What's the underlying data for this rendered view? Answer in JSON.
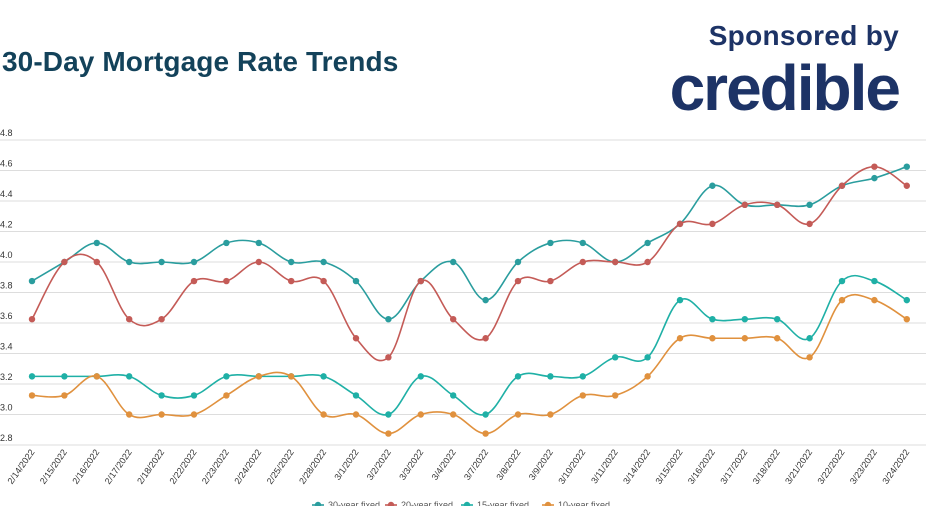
{
  "header": {
    "title": "30-Day Mortgage Rate Trends",
    "sponsor_label": "Sponsored by",
    "sponsor_logo": "credible"
  },
  "colors": {
    "title": "#13425a",
    "sponsor": "#1d3366",
    "grid": "#dddddd"
  },
  "chart_data": {
    "type": "line",
    "title": "30-Day Mortgage Rate Trends",
    "xlabel": "",
    "ylabel": "",
    "ylim": [
      2.8,
      4.8
    ],
    "yticks": [
      "2.8",
      "3.0",
      "3.2",
      "3.4",
      "3.6",
      "3.8",
      "4.0",
      "4.2",
      "4.4",
      "4.6",
      "4.8"
    ],
    "grid": true,
    "legend_position": "bottom",
    "categories": [
      "2/14/2022",
      "2/15/2022",
      "2/16/2022",
      "2/17/2022",
      "2/18/2022",
      "2/22/2022",
      "2/23/2022",
      "2/24/2022",
      "2/25/2022",
      "2/28/2022",
      "3/1/2022",
      "3/2/2022",
      "3/3/2022",
      "3/4/2022",
      "3/7/2022",
      "3/8/2022",
      "3/9/2022",
      "3/10/2022",
      "3/11/2022",
      "3/14/2022",
      "3/15/2022",
      "3/16/2022",
      "3/17/2022",
      "3/18/2022",
      "3/21/2022",
      "3/22/2022",
      "3/23/2022",
      "3/24/2022"
    ],
    "series": [
      {
        "name": "30-year fixed",
        "color": "#2a9d9e",
        "values": [
          3.875,
          4.0,
          4.125,
          4.0,
          4.0,
          4.0,
          4.125,
          4.125,
          4.0,
          4.0,
          3.875,
          3.625,
          3.875,
          4.0,
          3.75,
          4.0,
          4.125,
          4.125,
          4.0,
          4.125,
          4.25,
          4.5,
          4.375,
          4.375,
          4.375,
          4.5,
          4.55,
          4.625
        ]
      },
      {
        "name": "20-year fixed",
        "color": "#c45b57",
        "values": [
          3.625,
          4.0,
          4.0,
          3.625,
          3.625,
          3.875,
          3.875,
          4.0,
          3.875,
          3.875,
          3.5,
          3.375,
          3.875,
          3.625,
          3.5,
          3.875,
          3.875,
          4.0,
          4.0,
          4.0,
          4.25,
          4.25,
          4.375,
          4.375,
          4.25,
          4.5,
          4.625,
          4.5
        ]
      },
      {
        "name": "15-year fixed",
        "color": "#1fb0a6",
        "values": [
          3.25,
          3.25,
          3.25,
          3.25,
          3.125,
          3.125,
          3.25,
          3.25,
          3.25,
          3.25,
          3.125,
          3.0,
          3.25,
          3.125,
          3.0,
          3.25,
          3.25,
          3.25,
          3.375,
          3.375,
          3.75,
          3.625,
          3.625,
          3.625,
          3.5,
          3.875,
          3.875,
          3.75
        ]
      },
      {
        "name": "10-year fixed",
        "color": "#e0913e",
        "values": [
          3.125,
          3.125,
          3.25,
          3.0,
          3.0,
          3.0,
          3.125,
          3.25,
          3.25,
          3.0,
          3.0,
          2.875,
          3.0,
          3.0,
          2.875,
          3.0,
          3.0,
          3.125,
          3.125,
          3.25,
          3.5,
          3.5,
          3.5,
          3.5,
          3.375,
          3.75,
          3.75,
          3.625
        ]
      }
    ]
  }
}
